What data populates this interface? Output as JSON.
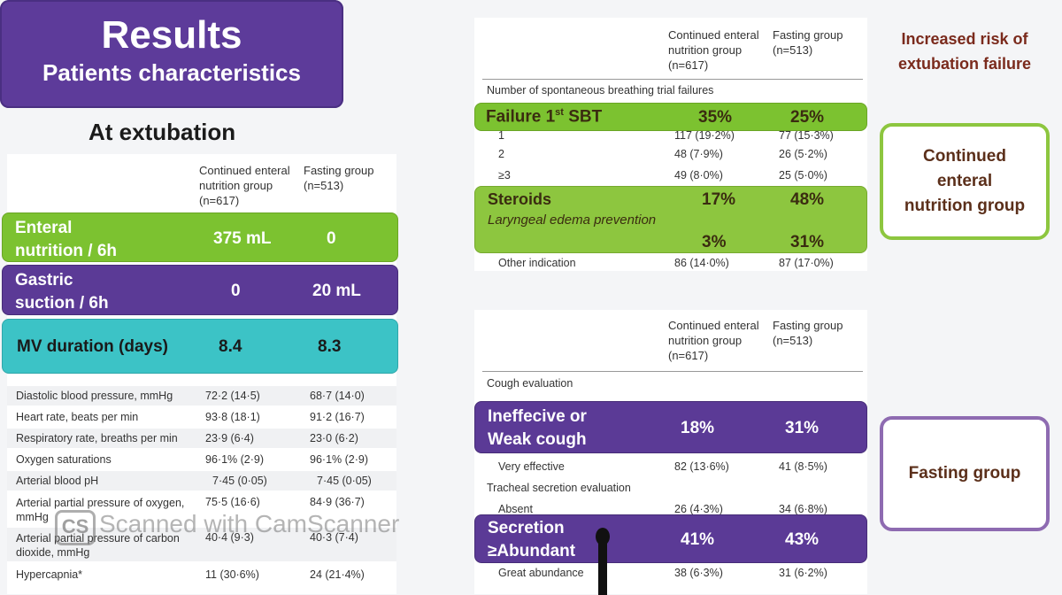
{
  "title": {
    "main": "Results",
    "sub": "Patients characteristics"
  },
  "left_subhead": "At extubation",
  "left_table": {
    "col1": [
      "Continued enteral",
      "nutrition group",
      "(n=617)"
    ],
    "col2": [
      "Fasting group",
      "(n=513)"
    ],
    "rows": [
      {
        "label": "Diastolic blood pressure, mmHg",
        "v1": "72·2 (14·5)",
        "v2": "68·7 (14·0)"
      },
      {
        "label": "Heart rate, beats per min",
        "v1": "93·8 (18·1)",
        "v2": "91·2 (16·7)"
      },
      {
        "label": "Respiratory rate, breaths per min",
        "v1": "23·9 (6·4)",
        "v2": "23·0 (6·2)"
      },
      {
        "label": "Oxygen saturations",
        "v1": "96·1% (2·9)",
        "v2": "96·1% (2·9)"
      },
      {
        "label": "Arterial blood pH",
        "v1": "7·45 (0·05)",
        "v2": "7·45 (0·05)"
      },
      {
        "label": "Arterial partial pressure of oxygen, mmHg",
        "v1": "75·5 (16·6)",
        "v2": "84·9 (36·7)"
      },
      {
        "label": "Arterial partial pressure of carbon dioxide, mmHg",
        "v1": "40·4 (9·3)",
        "v2": "40·3 (7·4)"
      },
      {
        "label": "Hypercapnia*",
        "v1": "11 (30·6%)",
        "v2": "24 (21·4%)"
      }
    ]
  },
  "left_overlays": {
    "enteral": {
      "label1": "Enteral",
      "label2": "nutrition / 6h",
      "v1": "375 mL",
      "v2": "0"
    },
    "gastric": {
      "label1": "Gastric",
      "label2": "suction / 6h",
      "v1": "0",
      "v2": "20 mL"
    },
    "mv": {
      "label": "MV duration (days)",
      "v1": "8.4",
      "v2": "8.3"
    }
  },
  "right_top_table": {
    "col1": [
      "Continued enteral",
      "nutrition group",
      "(n=617)"
    ],
    "col2": [
      "Fasting group",
      "(n=513)"
    ],
    "section": "Number of spontaneous breathing trial failures",
    "rows": [
      {
        "label": "1",
        "v1": "117 (19·2%)",
        "v2": "77 (15·3%)"
      },
      {
        "label": "2",
        "v1": "48 (7·9%)",
        "v2": "26 (5·2%)"
      },
      {
        "label": "≥3",
        "v1": "49 (8·0%)",
        "v2": "25 (5·0%)"
      }
    ],
    "other": {
      "label": "Other indication",
      "v1": "86 (14·0%)",
      "v2": "87 (17·0%)"
    }
  },
  "right_top_overlays": {
    "failure": {
      "label": "Failure 1",
      "sup": "st",
      "label_end": " SBT",
      "v1": "35%",
      "v2": "25%"
    },
    "steroids": {
      "label": "Steroids",
      "v1": "17%",
      "v2": "48%",
      "sub": "Laryngeal edema prevention",
      "sv1": "3%",
      "sv2": "31%"
    }
  },
  "right_bottom_table": {
    "col1": [
      "Continued enteral",
      "nutrition group",
      "(n=617)"
    ],
    "col2": [
      "Fasting group",
      "(n=513)"
    ],
    "cough_section": "Cough evaluation",
    "very_effective": {
      "label": "Very effective",
      "v1": "82 (13·6%)",
      "v2": "41 (8·5%)"
    },
    "secretion_section": "Tracheal secretion evaluation",
    "absent": {
      "label": "Absent",
      "v1": "26 (4·3%)",
      "v2": "34 (6·8%)"
    },
    "great": {
      "label": "Great abundance",
      "v1": "38 (6·3%)",
      "v2": "31 (6·2%)"
    }
  },
  "right_bottom_overlays": {
    "cough": {
      "label1": "Ineffecive or",
      "label2": "Weak cough",
      "v1": "18%",
      "v2": "31%"
    },
    "secretion": {
      "label1": "Secretion",
      "label2": "≥Abundant",
      "v1": "41%",
      "v2": "43%"
    }
  },
  "side": {
    "risk_line1": "Increased risk of",
    "risk_line2": "extubation failure",
    "box1": [
      "Continued",
      "enteral",
      "nutrition group"
    ],
    "box2": "Fasting group"
  },
  "watermark": "Scanned with CamScanner",
  "watermark_logo": "CS",
  "colors": {
    "purple": "#5b3a96",
    "green": "#7cc230",
    "teal": "#3cc3c6",
    "lime": "#8dc63f"
  }
}
